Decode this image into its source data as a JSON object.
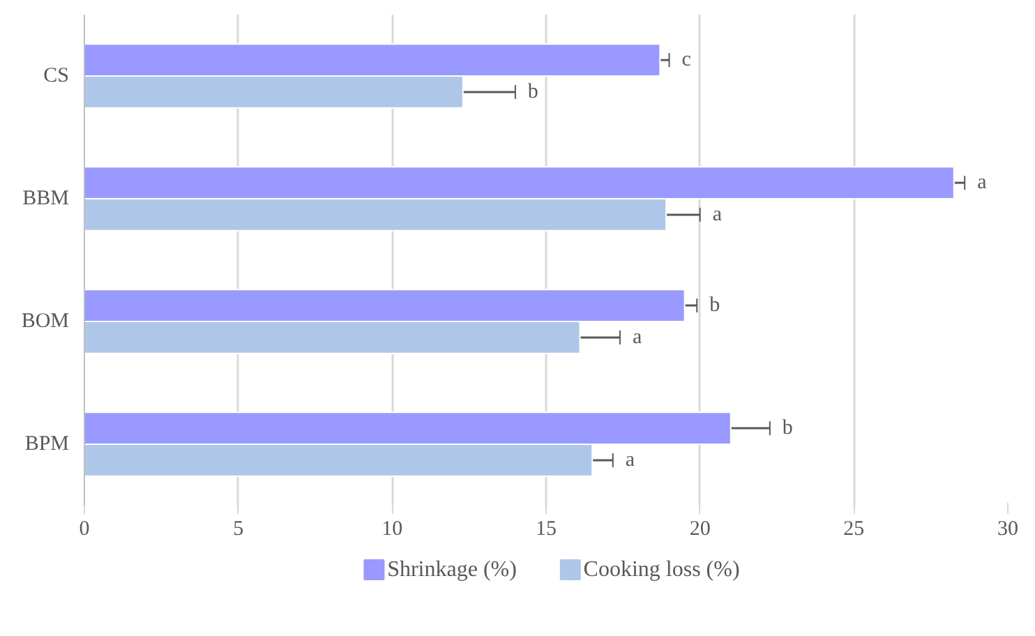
{
  "chart_data": {
    "type": "bar",
    "orientation": "horizontal",
    "categories": [
      "CS",
      "BBM",
      "BOM",
      "BPM"
    ],
    "series": [
      {
        "name": "Shrinkage (%)",
        "color": "#9999ff",
        "values": [
          18.7,
          28.25,
          19.5,
          21.0
        ],
        "errors": [
          0.3,
          0.35,
          0.4,
          1.27
        ],
        "value_labels": [
          "c",
          "a",
          "b",
          "b"
        ]
      },
      {
        "name": "Cooking loss (%)",
        "color": "#aec7e8",
        "values": [
          12.3,
          18.9,
          16.1,
          16.5
        ],
        "errors": [
          1.7,
          1.1,
          1.3,
          0.67
        ],
        "value_labels": [
          "b",
          "a",
          "a",
          "a"
        ]
      }
    ],
    "xlim": [
      0,
      30
    ],
    "xticks": [
      0,
      5,
      10,
      15,
      20,
      25,
      30
    ],
    "grid": "x",
    "legend": "bottom"
  }
}
